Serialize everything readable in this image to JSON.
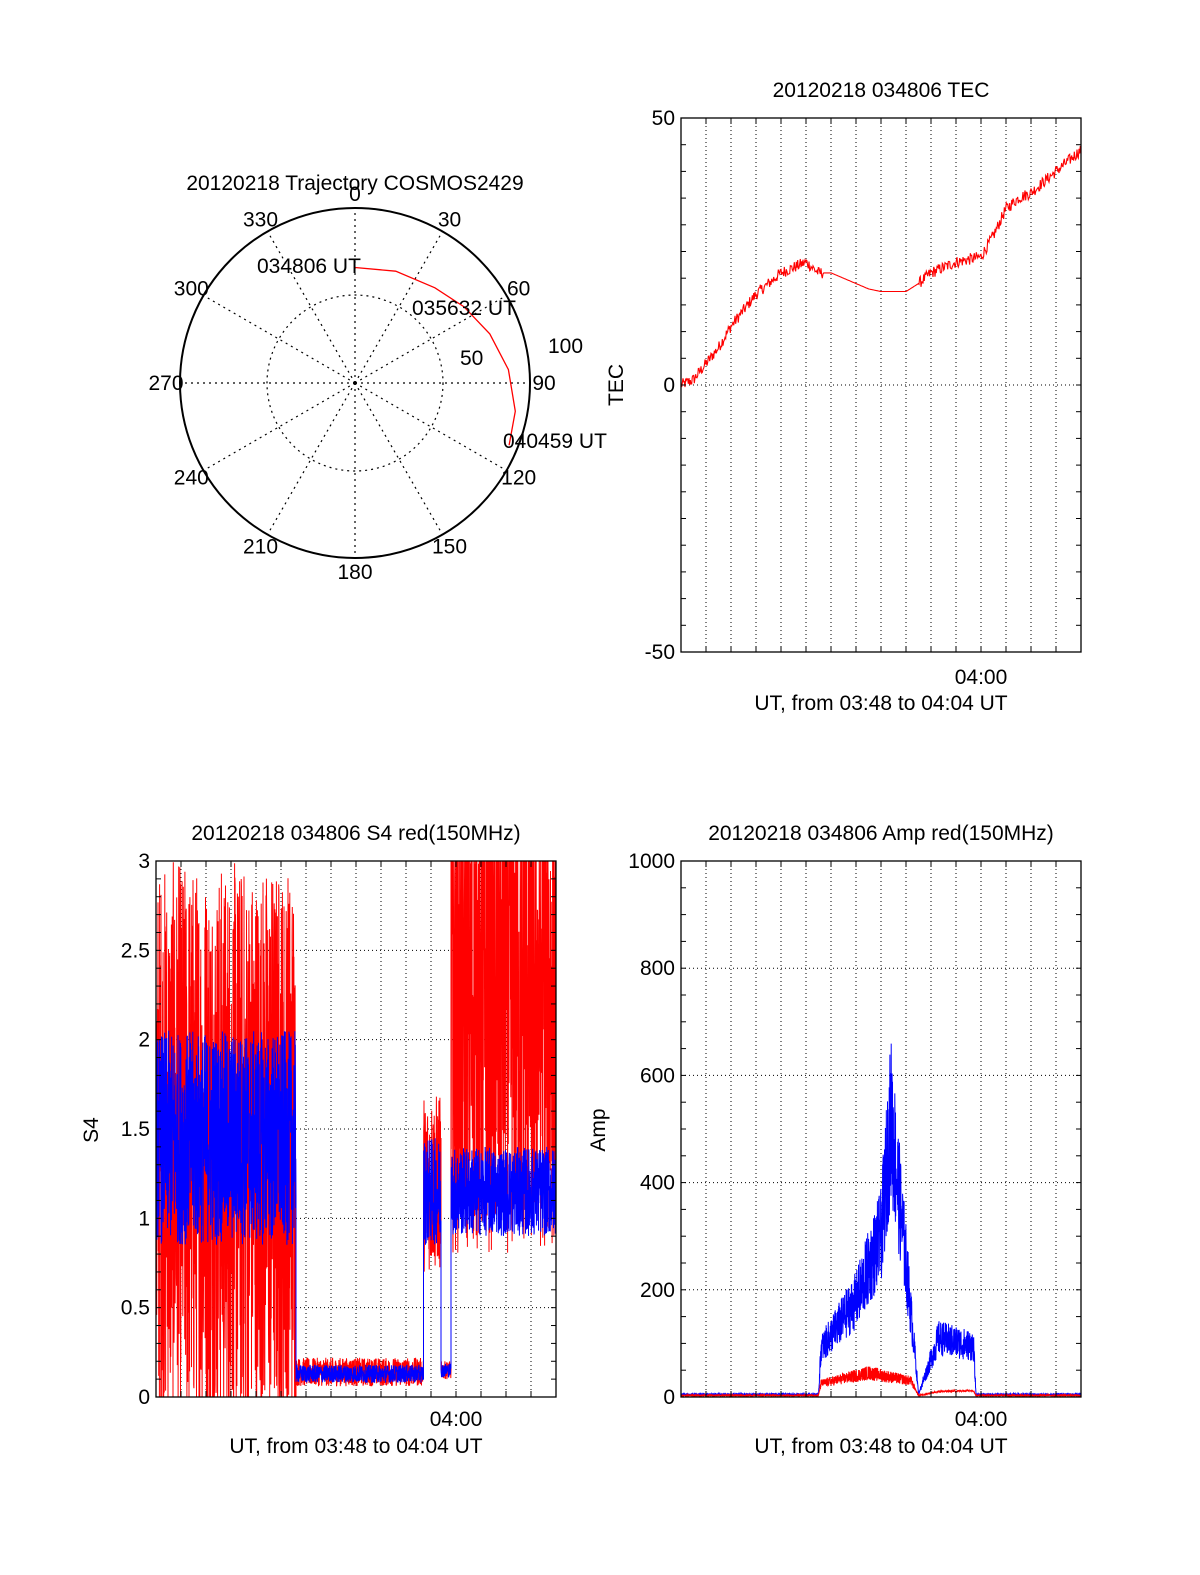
{
  "chart_data": [
    {
      "type": "polar",
      "title": "20120218 Trajectory COSMOS2429",
      "angle_labels": [
        "0",
        "30",
        "60",
        "90",
        "120",
        "150",
        "180",
        "210",
        "240",
        "270",
        "300",
        "330"
      ],
      "radial_labels": [
        "50",
        "100"
      ],
      "radial_range": [
        0,
        100
      ],
      "grid": true,
      "track": {
        "color": "#ff0000",
        "points": [
          {
            "azimuth": 0,
            "r": 66
          },
          {
            "azimuth": 20,
            "r": 68
          },
          {
            "azimuth": 40,
            "r": 71
          },
          {
            "azimuth": 55,
            "r": 76
          },
          {
            "azimuth": 70,
            "r": 82
          },
          {
            "azimuth": 85,
            "r": 88
          },
          {
            "azimuth": 100,
            "r": 93
          },
          {
            "azimuth": 112,
            "r": 95
          }
        ],
        "annotations": [
          "034806 UT",
          "035632 UT",
          "040459 UT"
        ]
      }
    },
    {
      "type": "line",
      "title": "20120218 034806 TEC",
      "ylabel": "TEC",
      "xlabel": "UT, from 03:48 to 04:04 UT",
      "xtick_labels": [
        "04:00"
      ],
      "xlim_minutes": [
        48,
        64
      ],
      "ylim": [
        -50,
        50
      ],
      "ytick_labels": [
        "-50",
        "0",
        "50"
      ],
      "grid": true,
      "series": [
        {
          "color": "#ff0000",
          "x_minutes": [
            48.0,
            48.5,
            49.0,
            49.5,
            50.0,
            50.5,
            51.0,
            51.5,
            52.0,
            52.5,
            53.0,
            53.5,
            54.0,
            54.5,
            55.0,
            55.5,
            56.0,
            56.5,
            57.0,
            57.5,
            58.0,
            58.5,
            59.0,
            59.5,
            60.0,
            60.5,
            61.0,
            61.5,
            62.0,
            62.5,
            63.0,
            63.5,
            64.0
          ],
          "values": [
            0,
            1,
            4,
            7,
            11,
            14,
            17,
            19,
            21,
            22,
            23,
            21,
            21,
            20,
            19,
            18,
            17.5,
            17.5,
            17.5,
            19,
            21,
            22,
            23,
            23.5,
            24,
            28,
            33,
            35,
            36,
            38,
            40,
            42,
            44
          ]
        }
      ]
    },
    {
      "type": "line",
      "title": "20120218 034806 S4 red(150MHz)",
      "ylabel": "S4",
      "xlabel": "UT, from 03:48 to 04:04 UT",
      "xtick_labels": [
        "04:00"
      ],
      "xlim_minutes": [
        48,
        64
      ],
      "ylim": [
        0,
        3
      ],
      "ytick_labels": [
        "0",
        "0.5",
        "1",
        "1.5",
        "2",
        "2.5",
        "3"
      ],
      "grid": true,
      "series": [
        {
          "color": "#ff0000",
          "segments": [
            {
              "x_minutes": [
                48.0,
                53.6
              ],
              "level": 1.4,
              "noise": 1.6
            },
            {
              "x_minutes": [
                53.6,
                58.7
              ],
              "level": 0.14,
              "noise": 0.08
            },
            {
              "x_minutes": [
                58.7,
                59.4
              ],
              "level": 1.2,
              "noise": 0.5
            },
            {
              "x_minutes": [
                59.4,
                59.8
              ],
              "level": 0.15,
              "noise": 0.05
            },
            {
              "x_minutes": [
                59.8,
                64.0
              ],
              "level": 2.2,
              "noise": 1.4
            }
          ]
        },
        {
          "color": "#0000ff",
          "segments": [
            {
              "x_minutes": [
                48.0,
                53.6
              ],
              "level": 1.45,
              "noise": 0.6
            },
            {
              "x_minutes": [
                53.6,
                58.7
              ],
              "level": 0.13,
              "noise": 0.05
            },
            {
              "x_minutes": [
                58.7,
                59.4
              ],
              "level": 1.15,
              "noise": 0.3
            },
            {
              "x_minutes": [
                59.4,
                59.8
              ],
              "level": 0.15,
              "noise": 0.04
            },
            {
              "x_minutes": [
                59.8,
                64.0
              ],
              "level": 1.15,
              "noise": 0.25
            }
          ]
        }
      ]
    },
    {
      "type": "line",
      "title": "20120218 034806 Amp red(150MHz)",
      "ylabel": "Amp",
      "xlabel": "UT, from 03:48 to 04:04 UT",
      "xtick_labels": [
        "04:00"
      ],
      "xlim_minutes": [
        48,
        64
      ],
      "ylim": [
        0,
        1000
      ],
      "ytick_labels": [
        "0",
        "200",
        "400",
        "600",
        "800",
        "1000"
      ],
      "grid": true,
      "series": [
        {
          "color": "#ff0000",
          "envelope": [
            {
              "x_minute": 48.0,
              "value": 3
            },
            {
              "x_minute": 53.5,
              "value": 3
            },
            {
              "x_minute": 53.6,
              "value": 25
            },
            {
              "x_minute": 55.5,
              "value": 45
            },
            {
              "x_minute": 57.2,
              "value": 30
            },
            {
              "x_minute": 57.5,
              "value": 3
            },
            {
              "x_minute": 58.3,
              "value": 10
            },
            {
              "x_minute": 59.7,
              "value": 12
            },
            {
              "x_minute": 59.8,
              "value": 3
            },
            {
              "x_minute": 64.0,
              "value": 3
            }
          ]
        },
        {
          "color": "#0000ff",
          "envelope": [
            {
              "x_minute": 48.0,
              "value": 5
            },
            {
              "x_minute": 53.5,
              "value": 5
            },
            {
              "x_minute": 53.6,
              "value": 90
            },
            {
              "x_minute": 55.0,
              "value": 180
            },
            {
              "x_minute": 56.0,
              "value": 300
            },
            {
              "x_minute": 56.4,
              "value": 520
            },
            {
              "x_minute": 57.0,
              "value": 250
            },
            {
              "x_minute": 57.4,
              "value": 60
            },
            {
              "x_minute": 57.5,
              "value": 5
            },
            {
              "x_minute": 58.3,
              "value": 110
            },
            {
              "x_minute": 59.7,
              "value": 95
            },
            {
              "x_minute": 59.8,
              "value": 5
            },
            {
              "x_minute": 64.0,
              "value": 5
            }
          ]
        }
      ]
    }
  ]
}
